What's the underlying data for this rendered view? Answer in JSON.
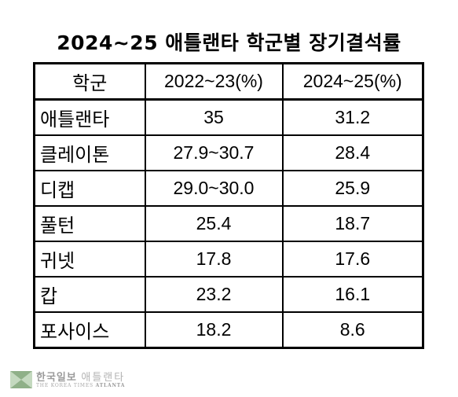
{
  "title": "2024~25 애틀랜타 학군별 장기결석률",
  "table": {
    "headers": [
      "학군",
      "2022~23(%)",
      "2024~25(%)"
    ],
    "rows": [
      {
        "school": "애틀랜타",
        "y2022": "35",
        "y2024": "31.2"
      },
      {
        "school": "클레이톤",
        "y2022": "27.9~30.7",
        "y2024": "28.4"
      },
      {
        "school": "디캡",
        "y2022": "29.0~30.0",
        "y2024": "25.9"
      },
      {
        "school": "풀턴",
        "y2022": "25.4",
        "y2024": "18.7"
      },
      {
        "school": "귀넷",
        "y2022": "17.8",
        "y2024": "17.6"
      },
      {
        "school": "캅",
        "y2022": "23.2",
        "y2024": "16.1"
      },
      {
        "school": "포사이스",
        "y2022": "18.2",
        "y2024": "8.6"
      }
    ]
  },
  "logo": {
    "name_ko": "한국일보",
    "city_ko": "애틀랜타",
    "name_en": "THE KOREA TIMES",
    "city_en": "ATLANTA",
    "colors": {
      "mark_light": "#c4d9bf",
      "mark_dark": "#8fb088",
      "text": "#9a9a9a"
    }
  }
}
